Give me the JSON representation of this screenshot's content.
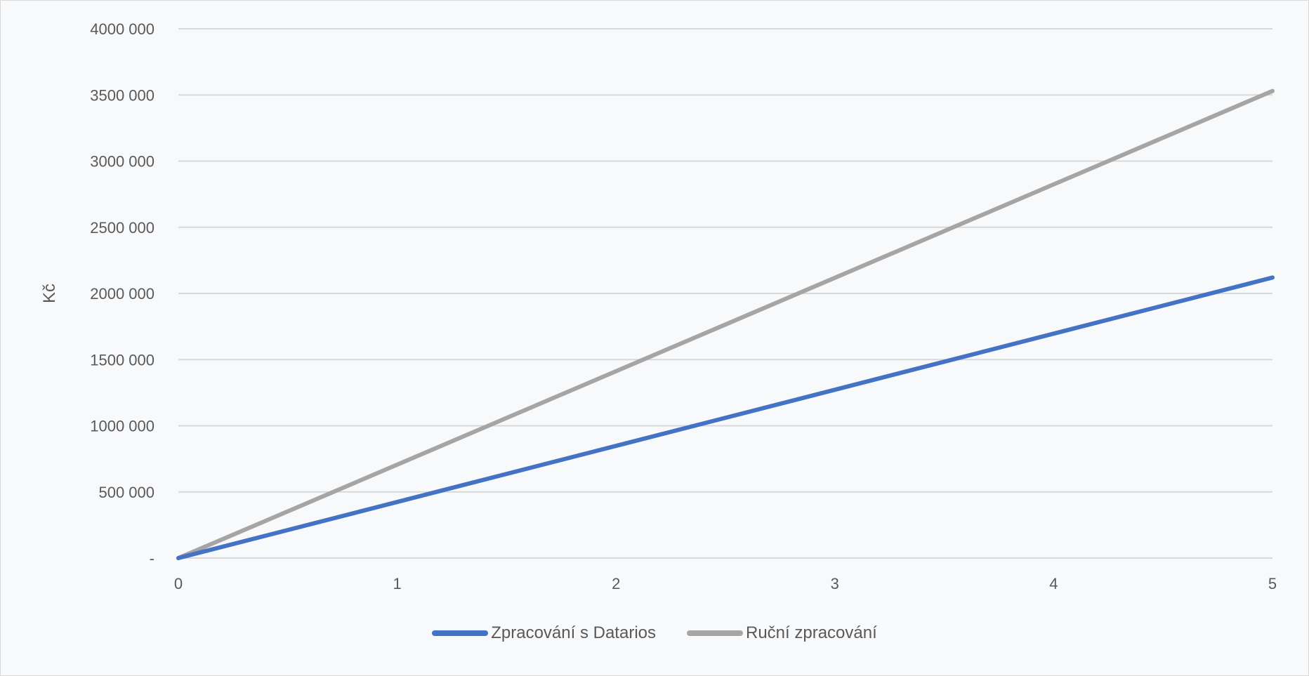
{
  "chart_data": {
    "type": "line",
    "title": "",
    "xlabel": "",
    "ylabel": "Kč",
    "xlim": [
      0,
      5
    ],
    "ylim": [
      0,
      4000000
    ],
    "x_ticks": [
      0,
      1,
      2,
      3,
      4,
      5
    ],
    "x_tick_labels": [
      "0",
      "1",
      "2",
      "3",
      "4",
      "5"
    ],
    "y_ticks": [
      0,
      500000,
      1000000,
      1500000,
      2000000,
      2500000,
      3000000,
      3500000,
      4000000
    ],
    "y_tick_labels": [
      "-",
      "500 000",
      "1000 000",
      "1500 000",
      "2000 000",
      "2500 000",
      "3000 000",
      "3500 000",
      "4000 000"
    ],
    "grid": "horizontal",
    "legend_position": "bottom",
    "series": [
      {
        "name": "Zpracování s Datarios",
        "color": "#4472c4",
        "x": [
          0,
          5
        ],
        "y": [
          0,
          2120000
        ]
      },
      {
        "name": "Ruční zpracování",
        "color": "#a5a5a5",
        "x": [
          0,
          5
        ],
        "y": [
          0,
          3530000
        ]
      }
    ]
  }
}
